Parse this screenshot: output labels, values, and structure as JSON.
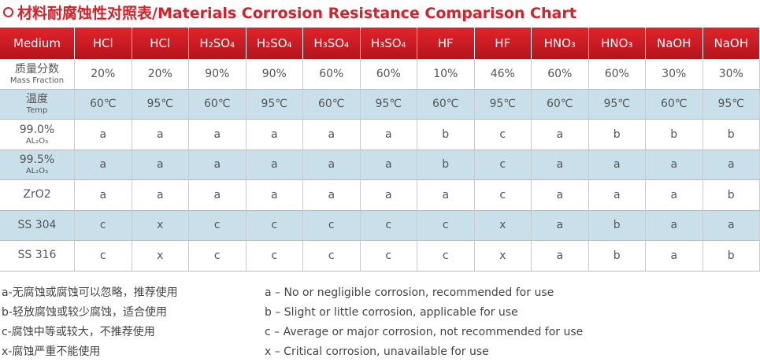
{
  "title": "材料耐腐蚀性对照表/Materials Corrosion Resistance Comparison Chart",
  "table": {
    "header": [
      "Medium",
      "HCl",
      "HCl",
      "H₂SO₄",
      "H₂SO₄",
      "H₃SO₄",
      "H₃SO₄",
      "HF",
      "HF",
      "HNO₃",
      "HNO₃",
      "NaOH",
      "NaOH"
    ],
    "rows": [
      {
        "label": "质量分数",
        "sublabel": "Mass Fraction",
        "cells": [
          "20%",
          "20%",
          "90%",
          "90%",
          "60%",
          "60%",
          "10%",
          "46%",
          "60%",
          "60%",
          "30%",
          "30%"
        ]
      },
      {
        "label": "温度",
        "sublabel": "Temp",
        "cells": [
          "60℃",
          "95℃",
          "60℃",
          "95℃",
          "60℃",
          "95℃",
          "60℃",
          "95℃",
          "60℃",
          "95℃",
          "60℃",
          "95℃"
        ]
      },
      {
        "label": "99.0%",
        "sublabel": "AL₂O₃",
        "cells": [
          "a",
          "a",
          "a",
          "a",
          "a",
          "a",
          "b",
          "c",
          "a",
          "b",
          "b",
          "b"
        ]
      },
      {
        "label": "99.5%",
        "sublabel": "AL₂O₃",
        "cells": [
          "a",
          "a",
          "a",
          "a",
          "a",
          "a",
          "b",
          "c",
          "a",
          "a",
          "a",
          "a"
        ]
      },
      {
        "label": "ZrO2",
        "cells": [
          "a",
          "a",
          "a",
          "a",
          "a",
          "a",
          "a",
          "c",
          "a",
          "a",
          "a",
          "b"
        ]
      },
      {
        "label": "SS 304",
        "cells": [
          "c",
          "x",
          "c",
          "c",
          "c",
          "c",
          "c",
          "x",
          "a",
          "b",
          "a",
          "a"
        ]
      },
      {
        "label": "SS 316",
        "cells": [
          "c",
          "x",
          "c",
          "c",
          "c",
          "c",
          "c",
          "x",
          "a",
          "b",
          "a",
          "b"
        ]
      }
    ]
  },
  "legend": {
    "chinese": [
      "a-无腐蚀或腐蚀可以忽略，推荐使用",
      "b-轻放腐蚀或较少腐蚀，适合使用",
      "c-腐蚀中等或较大，不推荐使用",
      "x-腐蚀严重不能使用"
    ],
    "english": [
      "a – No or negligible corrosion, recommended for use",
      "b – Slight or little corrosion, applicable for use",
      "c – Average or major corrosion, not recommended for use",
      "x – Critical corrosion, unavailable for use"
    ]
  }
}
